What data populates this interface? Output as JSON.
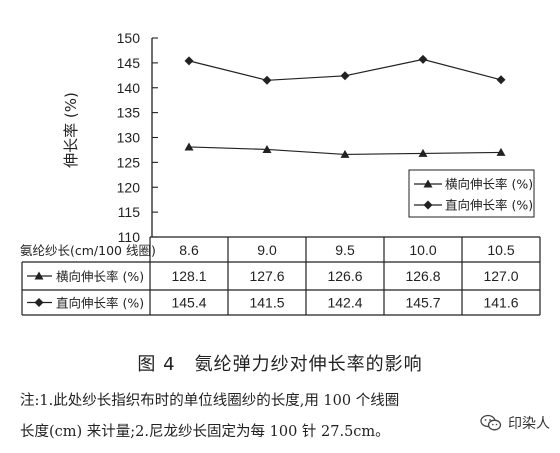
{
  "chart_data": {
    "type": "line",
    "ylabel": "伸长率 (%)",
    "ylim": [
      110,
      150
    ],
    "yticks": [
      110,
      115,
      120,
      125,
      130,
      135,
      140,
      145,
      150
    ],
    "categories": [
      "8.6",
      "9.0",
      "9.5",
      "10.0",
      "10.5"
    ],
    "series": [
      {
        "name": "横向伸长率 (%)",
        "values": [
          128.1,
          127.6,
          126.6,
          126.8,
          127.0
        ],
        "marker": "triangle"
      },
      {
        "name": "直向伸长率 (%)",
        "values": [
          145.4,
          141.5,
          142.4,
          145.7,
          141.6
        ],
        "marker": "diamond"
      }
    ],
    "legend_position": "inside lower-right",
    "grid": false,
    "table": {
      "header_label": "氨纶纱长(cm/100 线圈)",
      "rows": [
        {
          "label": "横向伸长率 (%)",
          "values": [
            "128.1",
            "127.6",
            "126.6",
            "126.8",
            "127.0"
          ]
        },
        {
          "label": "直向伸长率 (%)",
          "values": [
            "145.4",
            "141.5",
            "142.4",
            "145.7",
            "141.6"
          ]
        }
      ]
    }
  },
  "caption": "图 4　氨纶弹力纱对伸长率的影响",
  "note_line1": "注:1.此处纱长指织布时的单位线圈纱的长度,用 100 个线圈",
  "note_line2": "长度(cm) 来计量;2.尼龙纱长固定为每 100 针 27.5cm。",
  "watermark": "印染人",
  "colors": {
    "line": "#222222",
    "text": "#222222"
  }
}
